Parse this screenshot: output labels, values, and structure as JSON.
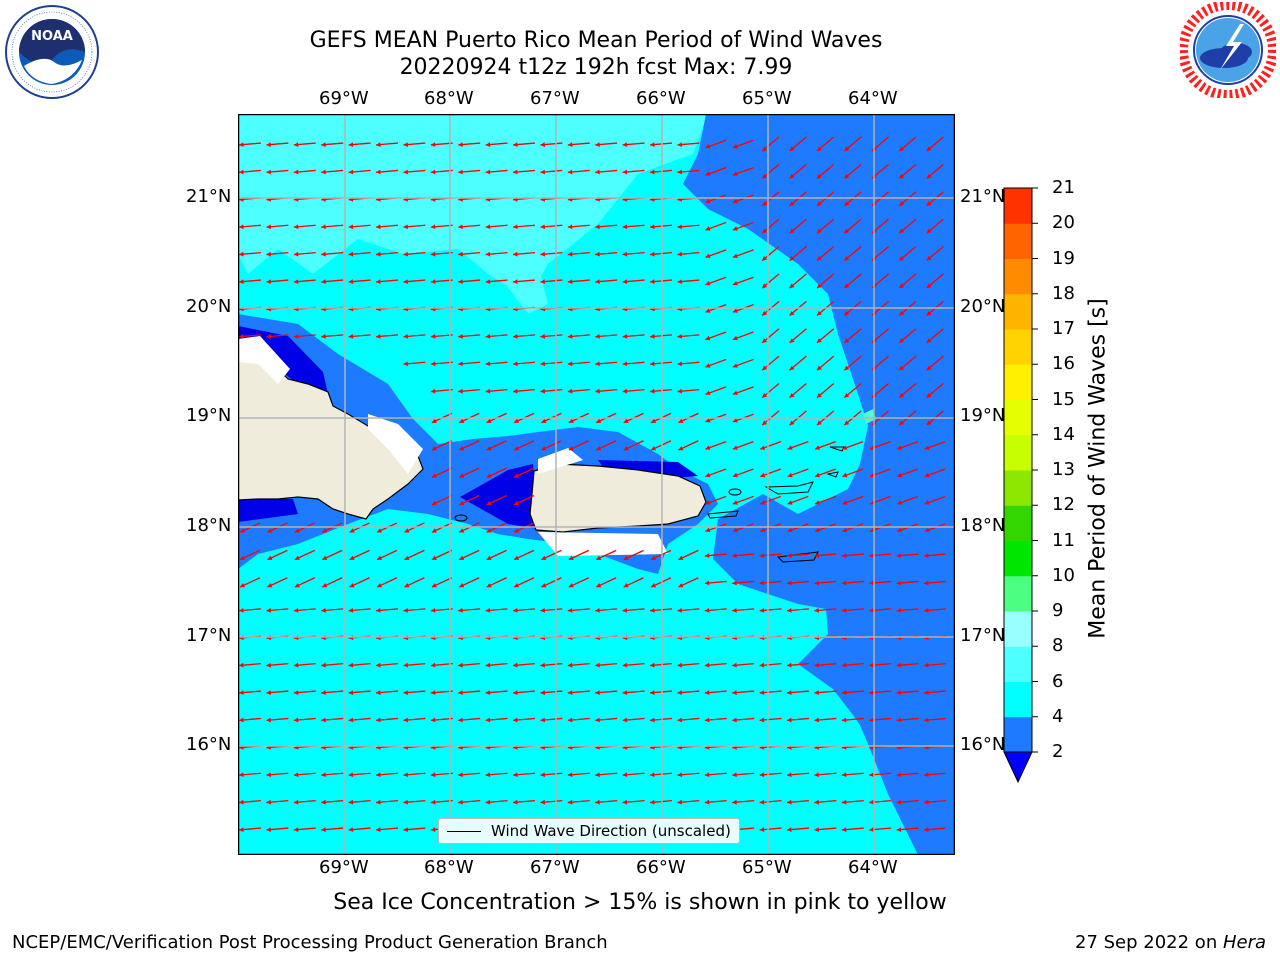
{
  "title": {
    "line1": "GEFS MEAN Puerto Rico Mean Period of Wind Waves",
    "line2": "20220924 t12z 192h fcst   Max: 7.99"
  },
  "logos": {
    "left": "noa-logo",
    "right": "national-weather-service-logo"
  },
  "map": {
    "top_lon_labels": [
      "69°W",
      "68°W",
      "67°W",
      "66°W",
      "65°W",
      "64°W"
    ],
    "bottom_lon_labels": [
      "69°W",
      "68°W",
      "67°W",
      "66°W",
      "65°W",
      "64°W"
    ],
    "left_lat_labels": [
      "21°N",
      "20°N",
      "19°N",
      "18°N",
      "17°N",
      "16°N"
    ],
    "right_lat_labels": [
      "21°N",
      "20°N",
      "19°N",
      "18°N",
      "17°N",
      "16°N"
    ],
    "legend_text": "Wind Wave Direction (unscaled)",
    "colors": {
      "ocean_main": "#00ffff",
      "ocean_light": "#4dffff",
      "band_2_4": "#1e7bff",
      "deep_blue": "#0000e6",
      "land": "#efecdc",
      "arrow": "#ff0000",
      "grid": "#b3b3b3"
    }
  },
  "colorbar": {
    "label": "Mean Period of Wind Waves [s]",
    "ticks": [
      "2",
      "4",
      "6",
      "8",
      "9",
      "10",
      "11",
      "12",
      "13",
      "14",
      "15",
      "16",
      "17",
      "18",
      "19",
      "20",
      "21"
    ],
    "colors": [
      "#1e7bff",
      "#00ffff",
      "#4dffff",
      "#99ffff",
      "#4cff80",
      "#00e600",
      "#33d600",
      "#8ce600",
      "#c8ff00",
      "#e6ff00",
      "#fff000",
      "#ffd200",
      "#ffb400",
      "#ff8c00",
      "#ff6400",
      "#ff3200",
      "#ff0000"
    ],
    "extend_color": "#0000ff"
  },
  "subtitle": "Sea Ice Concentration > 15% is shown in pink to yellow",
  "footer": {
    "left": "NCEP/EMC/Verification Post Processing Product Generation Branch",
    "right_date": "27 Sep 2022 on ",
    "right_host": "Hera"
  }
}
